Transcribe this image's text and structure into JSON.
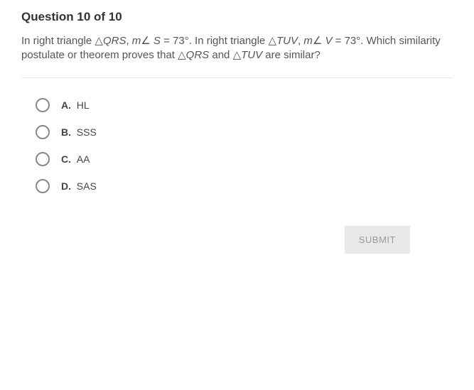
{
  "header": "Question 10 of 10",
  "prompt": {
    "p1": "In right triangle ",
    "tri1": "△",
    "t1": "QRS",
    "p2": ", ",
    "m1a": "m",
    "ang1": "∠",
    "m1b": " S",
    "p3": " = 73°. In right triangle ",
    "tri2": "△",
    "t2": "TUV",
    "p4": ", ",
    "m2a": "m",
    "ang2": "∠",
    "m2b": " V",
    "p5": " = 73°. Which similarity postulate or theorem proves that ",
    "tri3": "△",
    "t3": "QRS",
    "p6": " and ",
    "tri4": "△",
    "t4": "TUV",
    "p7": " are similar?"
  },
  "options": [
    {
      "letter": "A.",
      "text": "HL"
    },
    {
      "letter": "B.",
      "text": "SSS"
    },
    {
      "letter": "C.",
      "text": "AA"
    },
    {
      "letter": "D.",
      "text": "SAS"
    }
  ],
  "submit_label": "SUBMIT"
}
